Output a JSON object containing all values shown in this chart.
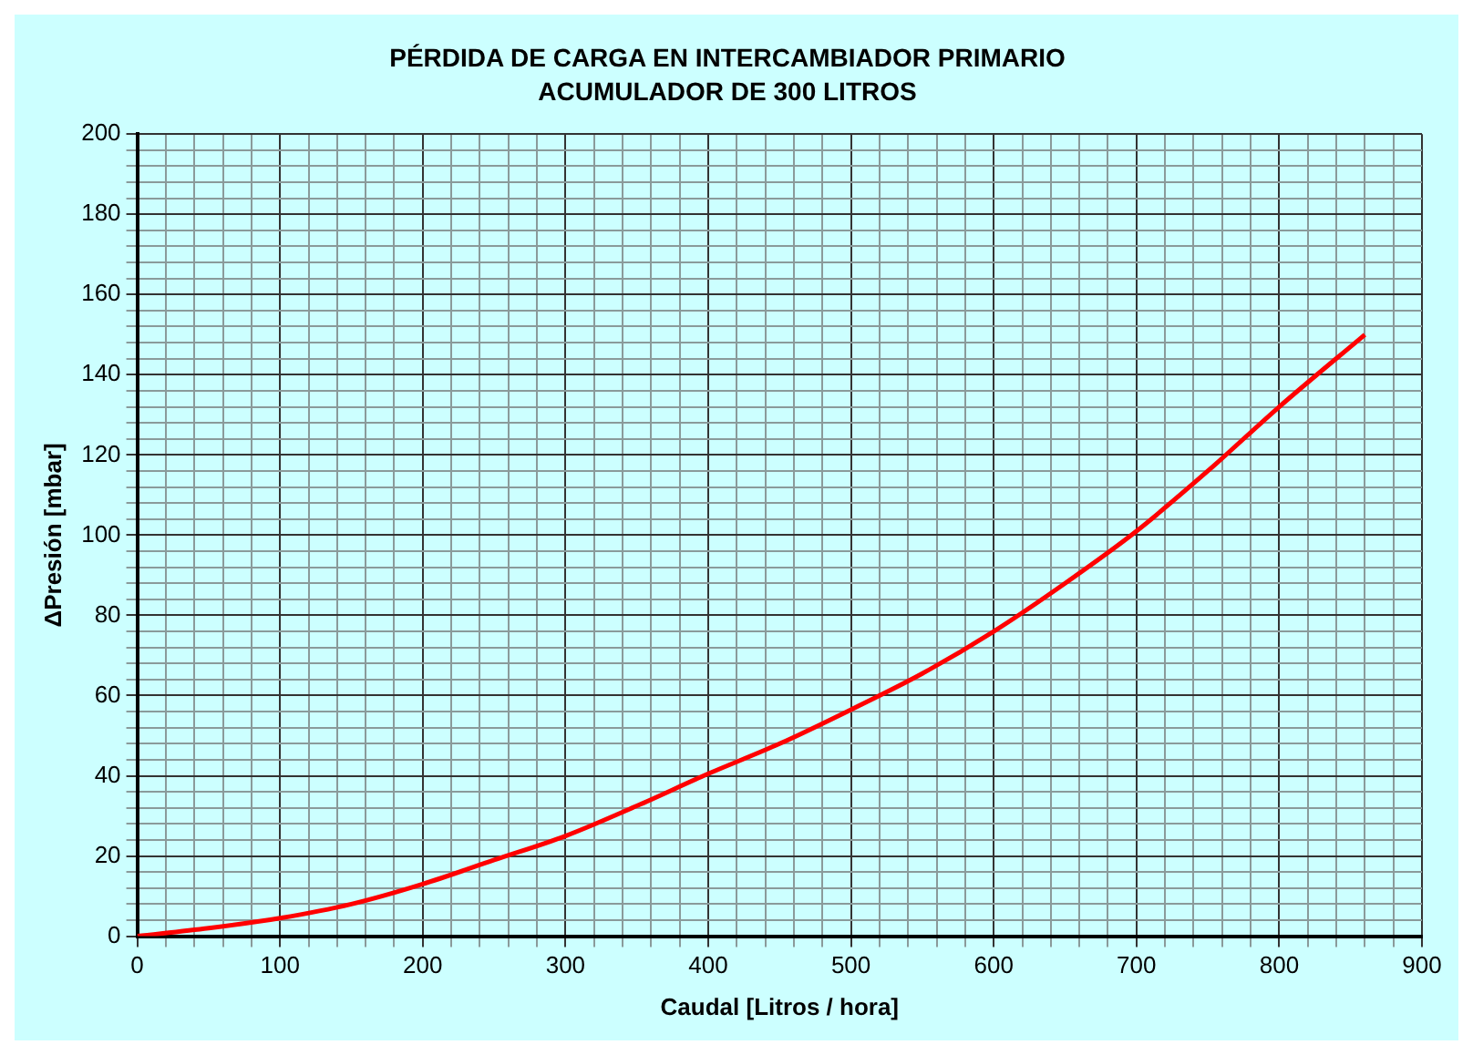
{
  "chart_data": {
    "type": "line",
    "title": "PÉRDIDA DE CARGA EN INTERCAMBIADOR PRIMARIO",
    "subtitle": "ACUMULADOR DE 300 LITROS",
    "xlabel": "Caudal [Litros / hora]",
    "ylabel": "ΔPresión [mbar]",
    "x": [
      0,
      50,
      100,
      150,
      200,
      250,
      300,
      350,
      400,
      450,
      500,
      550,
      600,
      650,
      700,
      750,
      800,
      860
    ],
    "series": [
      {
        "color": "#ff0000",
        "values": [
          0,
          2,
          4.5,
          8,
          13,
          19,
          25,
          32.5,
          40.5,
          48,
          56.5,
          65.5,
          76,
          88,
          101,
          116,
          132,
          150
        ]
      }
    ],
    "xlim": [
      0,
      900
    ],
    "ylim": [
      0,
      200
    ],
    "xticks": [
      0,
      {
        "value": 20,
        "label": null
      },
      {
        "value": 40,
        "label": null
      },
      {
        "value": 60,
        "label": null
      },
      {
        "value": 80,
        "label": null
      },
      100,
      {
        "value": 120,
        "label": null
      },
      {
        "value": 140,
        "label": null
      },
      {
        "value": 160,
        "label": null
      },
      {
        "value": 180,
        "label": null
      },
      200,
      {
        "value": 220,
        "label": null
      },
      {
        "value": 240,
        "label": null
      },
      {
        "value": 260,
        "label": null
      },
      {
        "value": 280,
        "label": null
      },
      300,
      {
        "value": 320,
        "label": null
      },
      {
        "value": 340,
        "label": null
      },
      {
        "value": 360,
        "label": null
      },
      {
        "value": 380,
        "label": null
      },
      400,
      {
        "value": 420,
        "label": null
      },
      {
        "value": 440,
        "label": null
      },
      {
        "value": 460,
        "label": null
      },
      {
        "value": 480,
        "label": null
      },
      500,
      {
        "value": 520,
        "label": null
      },
      {
        "value": 540,
        "label": null
      },
      {
        "value": 560,
        "label": null
      },
      {
        "value": 580,
        "label": null
      },
      600,
      {
        "value": 620,
        "label": null
      },
      {
        "value": 640,
        "label": null
      },
      {
        "value": 660,
        "label": null
      },
      {
        "value": 680,
        "label": null
      },
      700,
      {
        "value": 720,
        "label": null
      },
      {
        "value": 740,
        "label": null
      },
      {
        "value": 760,
        "label": null
      },
      {
        "value": 780,
        "label": null
      },
      800,
      {
        "value": 820,
        "label": null
      },
      {
        "value": 840,
        "label": null
      },
      {
        "value": 860,
        "label": null
      },
      {
        "value": 880,
        "label": null
      },
      900
    ],
    "yticks": [
      0,
      {
        "value": 4,
        "label": null
      },
      {
        "value": 8,
        "label": null
      },
      {
        "value": 12,
        "label": null
      },
      {
        "value": 16,
        "label": null
      },
      20,
      {
        "value": 24,
        "label": null
      },
      {
        "value": 28,
        "label": null
      },
      {
        "value": 32,
        "label": null
      },
      {
        "value": 36,
        "label": null
      },
      40,
      {
        "value": 44,
        "label": null
      },
      {
        "value": 48,
        "label": null
      },
      {
        "value": 52,
        "label": null
      },
      {
        "value": 56,
        "label": null
      },
      60,
      {
        "value": 64,
        "label": null
      },
      {
        "value": 68,
        "label": null
      },
      {
        "value": 72,
        "label": null
      },
      {
        "value": 76,
        "label": null
      },
      80,
      {
        "value": 84,
        "label": null
      },
      {
        "value": 88,
        "label": null
      },
      {
        "value": 92,
        "label": null
      },
      {
        "value": 96,
        "label": null
      },
      100,
      {
        "value": 104,
        "label": null
      },
      {
        "value": 108,
        "label": null
      },
      {
        "value": 112,
        "label": null
      },
      {
        "value": 116,
        "label": null
      },
      120,
      {
        "value": 124,
        "label": null
      },
      {
        "value": 128,
        "label": null
      },
      {
        "value": 132,
        "label": null
      },
      {
        "value": 136,
        "label": null
      },
      140,
      {
        "value": 144,
        "label": null
      },
      {
        "value": 148,
        "label": null
      },
      {
        "value": 152,
        "label": null
      },
      {
        "value": 156,
        "label": null
      },
      160,
      {
        "value": 164,
        "label": null
      },
      {
        "value": 168,
        "label": null
      },
      {
        "value": 172,
        "label": null
      },
      {
        "value": 176,
        "label": null
      },
      180,
      {
        "value": 184,
        "label": null
      },
      {
        "value": 188,
        "label": null
      },
      {
        "value": 192,
        "label": null
      },
      {
        "value": 196,
        "label": null
      },
      200
    ],
    "grid": true,
    "legend": false,
    "marker": "none",
    "line_style": "solid"
  }
}
